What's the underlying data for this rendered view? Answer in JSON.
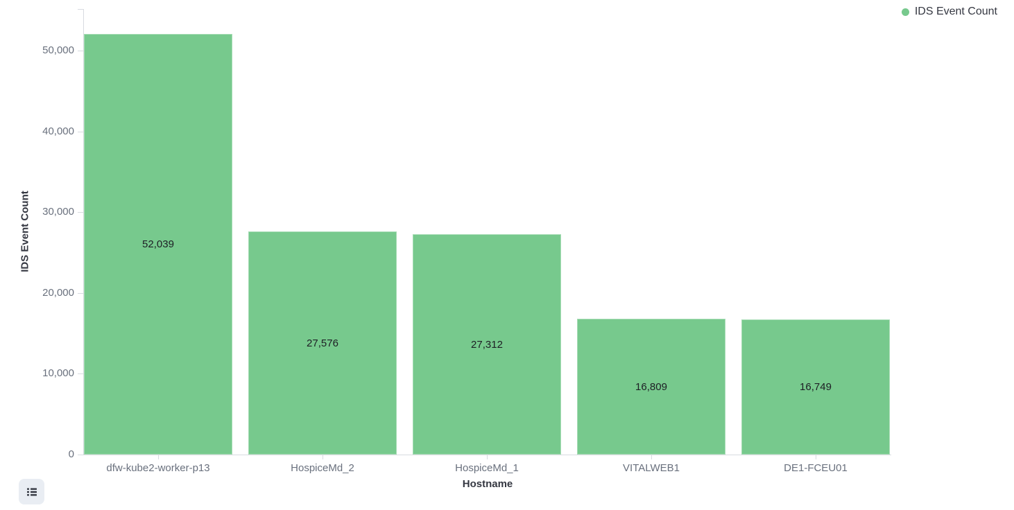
{
  "legend": {
    "label": "IDS Event Count"
  },
  "legend_toggle": {
    "icon": "list-icon"
  },
  "chart_data": {
    "type": "bar",
    "title": "",
    "categories": [
      "dfw-kube2-worker-p13",
      "HospiceMd_2",
      "HospiceMd_1",
      "VITALWEB1",
      "DE1-FCEU01"
    ],
    "values": [
      52039,
      27576,
      27312,
      16809,
      16749
    ],
    "value_labels": [
      "52,039",
      "27,576",
      "27,312",
      "16,809",
      "16,749"
    ],
    "xlabel": "Hostname",
    "ylabel": "IDS Event Count",
    "ylim": [
      0,
      55000
    ],
    "y_ticks": [
      0,
      10000,
      20000,
      30000,
      40000,
      50000
    ],
    "y_tick_labels": [
      "0",
      "10,000",
      "20,000",
      "30,000",
      "40,000",
      "50,000"
    ],
    "legend_position": "top-right",
    "grid": false,
    "colors": {
      "bar": "#77c98d",
      "axis_line": "#d8dbe0",
      "tick_text": "#69707d",
      "axis_title_text": "#343741",
      "value_label_text": "#1d1e24",
      "legend_text": "#343741",
      "button_bg": "#e9edf3",
      "button_icon": "#343741"
    }
  }
}
